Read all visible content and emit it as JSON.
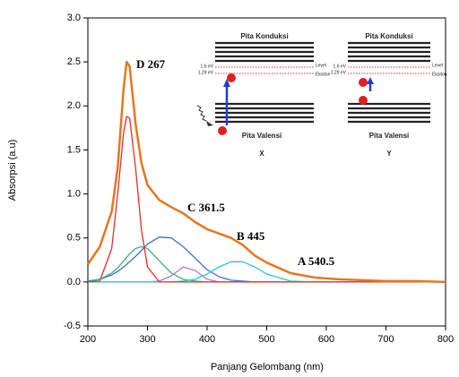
{
  "chart_data": {
    "type": "line",
    "x_label": "Panjang Gelombang (nm)",
    "y_label": "Absorpsi (a.u)",
    "x": [
      200,
      220,
      240,
      250,
      260,
      265,
      270,
      280,
      290,
      300,
      320,
      340,
      360,
      380,
      400,
      420,
      440,
      460,
      480,
      500,
      540,
      580,
      620,
      660,
      700,
      750,
      800
    ],
    "series": [
      {
        "color": "#3b6fd4",
        "values": [
          0.01,
          0.03,
          0.08,
          0.12,
          0.17,
          0.2,
          0.23,
          0.29,
          0.36,
          0.43,
          0.51,
          0.5,
          0.4,
          0.27,
          0.14,
          0.06,
          0.02,
          0.01,
          0,
          0,
          0,
          0,
          0,
          0,
          0,
          0,
          0
        ]
      },
      {
        "color": "#3db37a",
        "values": [
          0,
          0.03,
          0.1,
          0.16,
          0.24,
          0.28,
          0.32,
          0.38,
          0.4,
          0.38,
          0.24,
          0.1,
          0.03,
          0.01,
          0,
          0,
          0,
          0,
          0,
          0,
          0,
          0,
          0,
          0,
          0,
          0,
          0
        ]
      },
      {
        "color": "#b574d6",
        "values": [
          0,
          0,
          0,
          0,
          0,
          0,
          0,
          0,
          0,
          0,
          0.01,
          0.07,
          0.17,
          0.13,
          0.03,
          0,
          0,
          0,
          0,
          0,
          0,
          0,
          0,
          0,
          0,
          0,
          0
        ]
      },
      {
        "color": "#2cc3cf",
        "values": [
          0,
          0,
          0,
          0,
          0,
          0,
          0,
          0,
          0,
          0,
          0,
          0,
          0.01,
          0.03,
          0.09,
          0.17,
          0.23,
          0.23,
          0.17,
          0.09,
          0.01,
          0,
          0,
          0,
          0,
          0,
          0
        ]
      },
      {
        "color": "#e0302a",
        "values": [
          0,
          0.01,
          0.38,
          1.0,
          1.7,
          1.88,
          1.86,
          1.3,
          0.59,
          0.17,
          0,
          0,
          0,
          0,
          0,
          0,
          0,
          0,
          0,
          0,
          0,
          0,
          0,
          0,
          0,
          0,
          0
        ]
      },
      {
        "color": "#e8761e",
        "values": [
          0.2,
          0.4,
          0.8,
          1.3,
          2.2,
          2.5,
          2.45,
          1.8,
          1.35,
          1.1,
          0.93,
          0.85,
          0.78,
          0.68,
          0.6,
          0.55,
          0.5,
          0.42,
          0.3,
          0.22,
          0.1,
          0.05,
          0.03,
          0.02,
          0.01,
          0.01,
          0
        ]
      }
    ],
    "xlim": [
      200,
      800
    ],
    "xticks": [
      200,
      300,
      400,
      500,
      600,
      700,
      800
    ],
    "ylim": [
      -0.5,
      3.0
    ],
    "yticks": [
      -0.5,
      {
        "value": 0,
        "label": "0.0"
      },
      0.5,
      {
        "value": 1,
        "label": "1.0"
      },
      1.5,
      {
        "value": 2,
        "label": "2.0"
      },
      2.5,
      {
        "value": 3,
        "label": "3.0"
      }
    ],
    "annotations": [
      "D 267",
      "C 361.5",
      "B 445",
      "A 540.5"
    ],
    "inset": [
      {
        "conduction": "Pita Konduksi",
        "valence": "Pita Valensi",
        "level": "Level",
        "exciton": "Eksiton",
        "e1": "1,6 eV",
        "e2": "1,29 eV",
        "label": "X"
      },
      {
        "conduction": "Pita Konduksi",
        "valence": "Pita Valensi",
        "level": "Level",
        "exciton": "Eksiton",
        "e1": "1,6 eV",
        "e2": "1,29 eV",
        "label": "Y"
      }
    ]
  }
}
